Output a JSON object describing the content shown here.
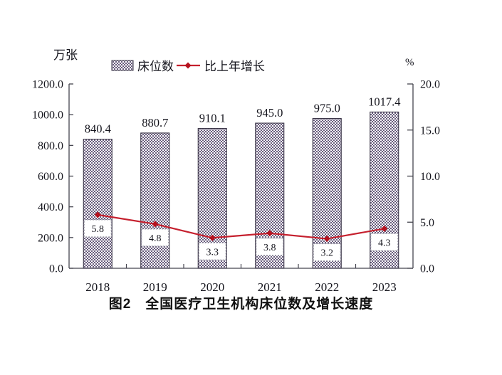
{
  "figure": {
    "caption": "图2　全国医疗卫生机构床位数及增长速度"
  },
  "chart_data": {
    "type": "combo bar+line",
    "categories": [
      "2018",
      "2019",
      "2020",
      "2021",
      "2022",
      "2023"
    ],
    "series": [
      {
        "name": "床位数",
        "type": "bar",
        "axis": "left",
        "values": [
          840.4,
          880.7,
          910.1,
          945.0,
          975.0,
          1017.4
        ],
        "value_labels": [
          "840.4",
          "880.7",
          "910.1",
          "945.0",
          "975.0",
          "1017.4"
        ],
        "fill": "pattern-checkerboard"
      },
      {
        "name": "比上年增长",
        "type": "line",
        "axis": "right",
        "values": [
          5.8,
          4.8,
          3.3,
          3.8,
          3.2,
          4.3
        ],
        "value_labels": [
          "5.8",
          "4.8",
          "3.3",
          "3.8",
          "3.2",
          "4.3"
        ],
        "marker": "diamond"
      }
    ],
    "left_axis": {
      "unit": "万张",
      "min": 0,
      "max": 1200,
      "step": 200,
      "tick_labels": [
        "0.0",
        "200.0",
        "400.0",
        "600.0",
        "800.0",
        "1000.0",
        "1200.0"
      ]
    },
    "right_axis": {
      "unit": "%",
      "min": 0,
      "max": 20,
      "step": 5,
      "tick_labels": [
        "0.0",
        "5.0",
        "10.0",
        "15.0",
        "20.0"
      ]
    },
    "legend": {
      "position": "top",
      "entries": [
        "床位数",
        "比上年增长"
      ]
    },
    "caption": "图2　全国医疗卫生机构床位数及增长速度",
    "grid": false,
    "style": {
      "bar_pattern_color": "#6a5e7e",
      "bar_border_color": "#3a3547",
      "line_color": "#c5202e",
      "marker_color": "#b5121f",
      "label_box_border": "#9a9aa5",
      "axis_color": "#45454f",
      "text_color": "#15151d",
      "background": "#ffffff"
    }
  }
}
